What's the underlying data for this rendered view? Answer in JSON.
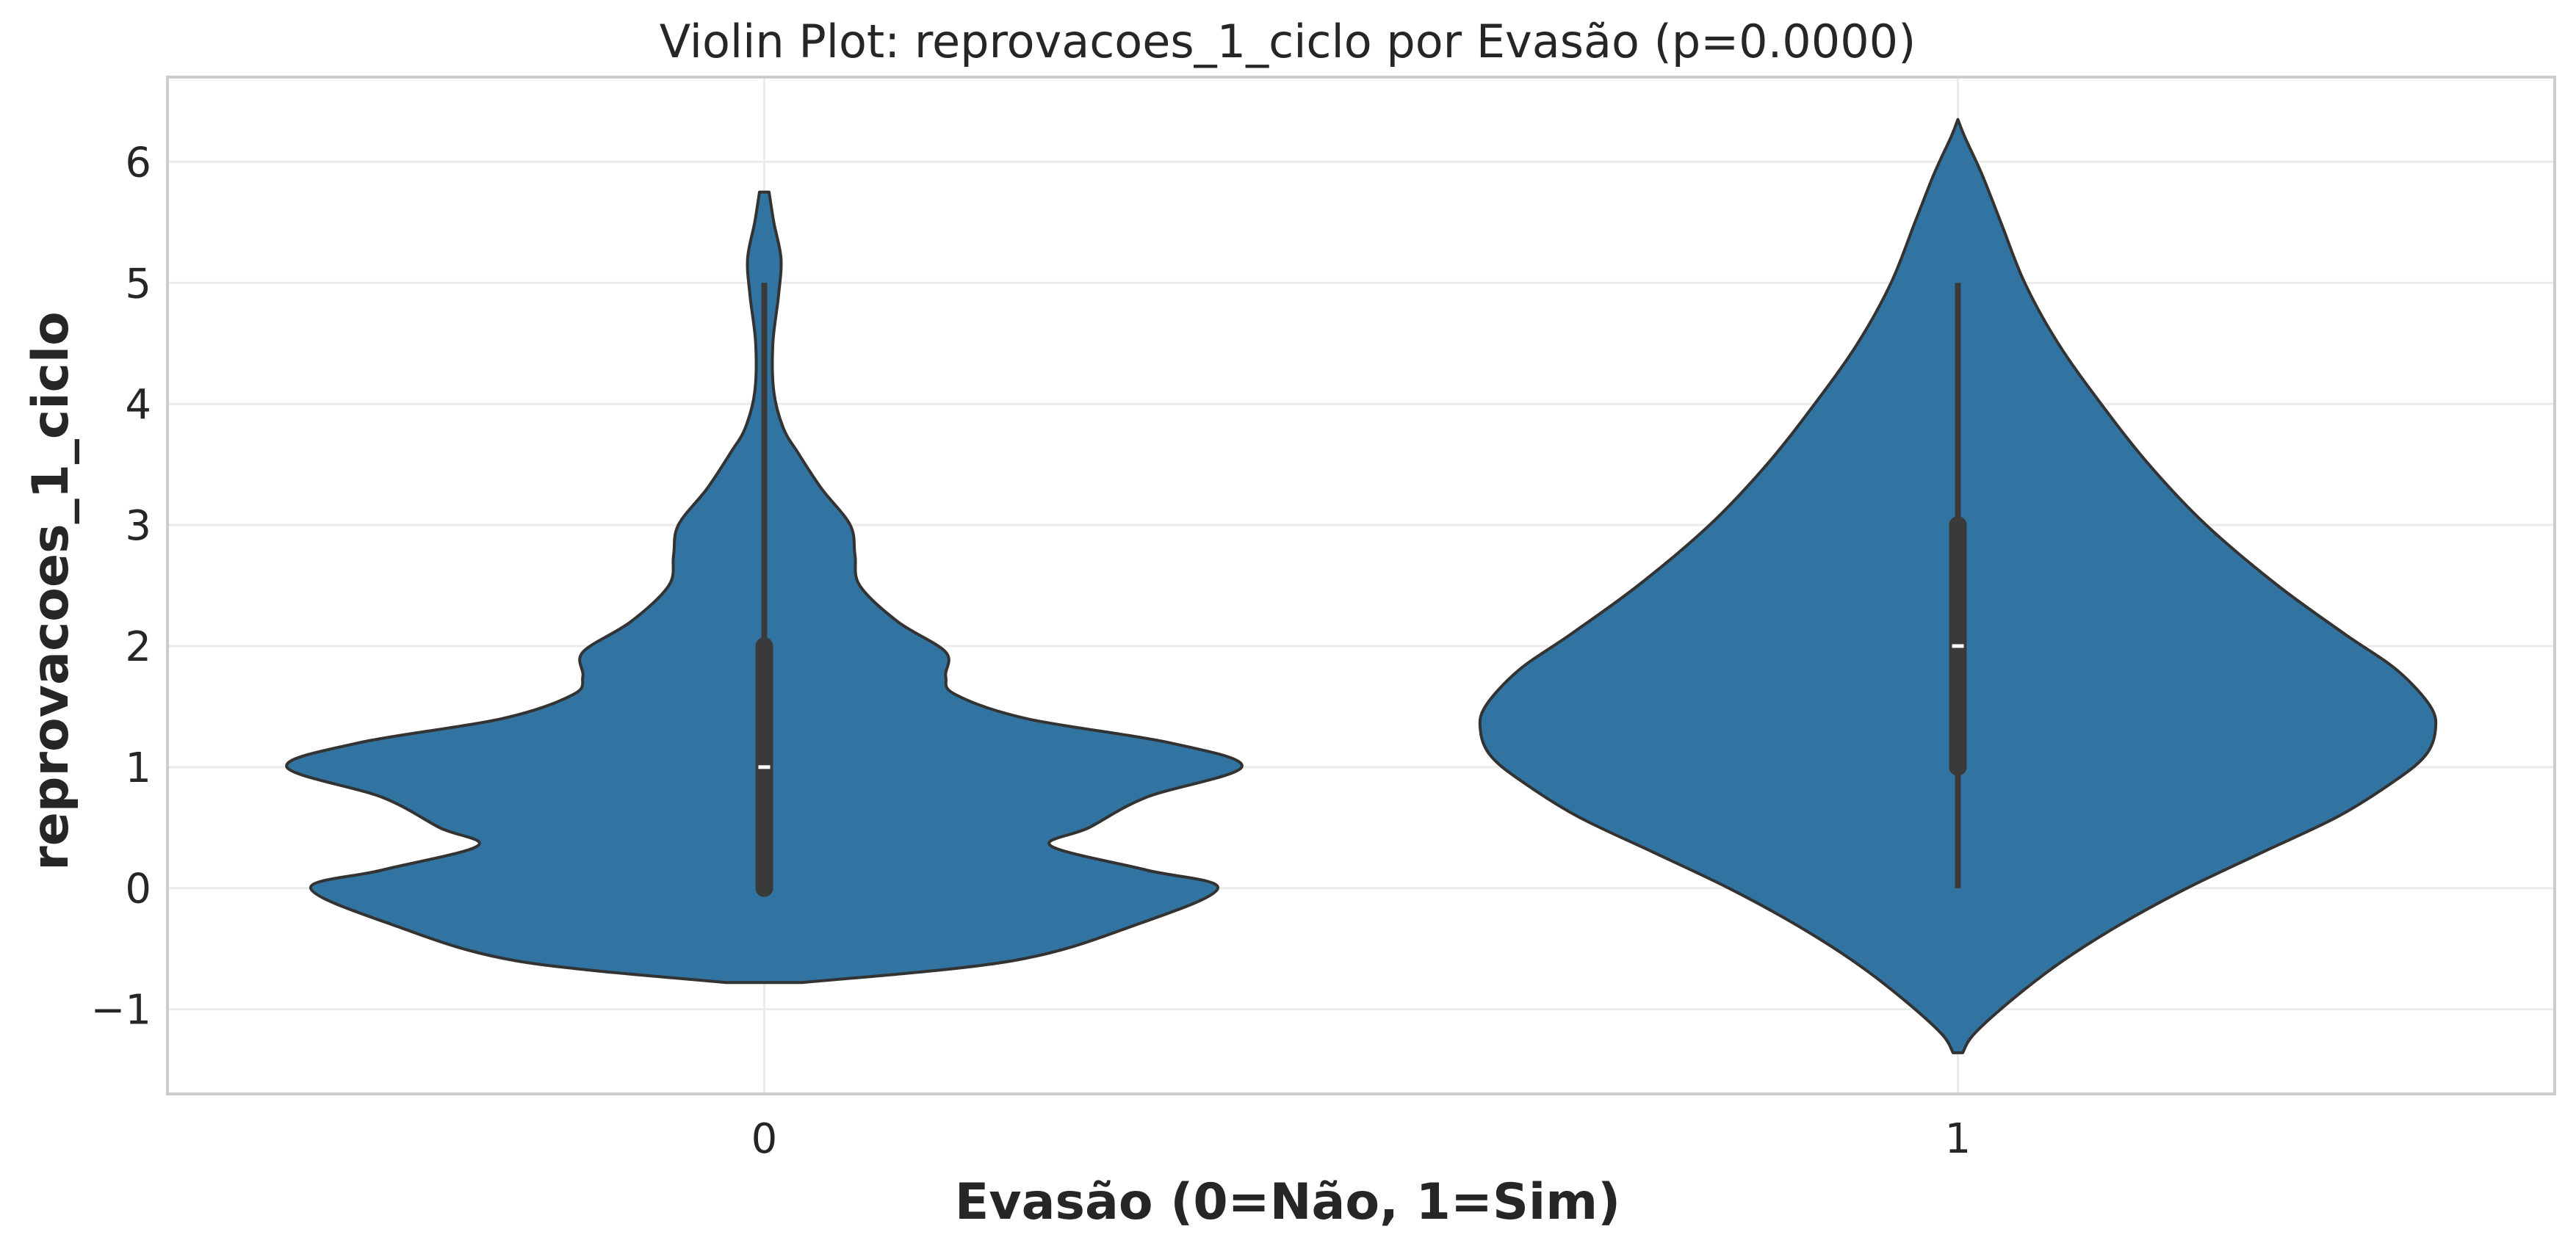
{
  "chart_data": {
    "type": "violin",
    "title": "Violin Plot: reprovacoes_1_ciclo por Evasão (p=0.0000)",
    "xlabel": "Evasão (0=Não, 1=Sim)",
    "ylabel": "reprovacoes_1_ciclo",
    "categories": [
      "0",
      "1"
    ],
    "ylim": [
      -1.7,
      6.7
    ],
    "yticks": [
      -1,
      0,
      1,
      2,
      3,
      4,
      5,
      6
    ],
    "ytick_labels": [
      "−1",
      "0",
      "1",
      "2",
      "3",
      "4",
      "5",
      "6"
    ],
    "grid": true,
    "color": "#3274a1",
    "violins": [
      {
        "category": "0",
        "median": 1,
        "q1": 0,
        "q3": 2,
        "whisker_low": 0,
        "whisker_high": 5,
        "density": [
          [
            -0.78,
            0.08
          ],
          [
            -0.6,
            0.52
          ],
          [
            -0.3,
            0.78
          ],
          [
            0.0,
            0.95
          ],
          [
            0.15,
            0.8
          ],
          [
            0.35,
            0.6
          ],
          [
            0.5,
            0.68
          ],
          [
            0.75,
            0.8
          ],
          [
            1.0,
            1.0
          ],
          [
            1.2,
            0.85
          ],
          [
            1.4,
            0.55
          ],
          [
            1.6,
            0.4
          ],
          [
            1.75,
            0.38
          ],
          [
            1.95,
            0.38
          ],
          [
            2.2,
            0.28
          ],
          [
            2.5,
            0.2
          ],
          [
            2.75,
            0.19
          ],
          [
            3.0,
            0.18
          ],
          [
            3.3,
            0.12
          ],
          [
            3.6,
            0.07
          ],
          [
            3.8,
            0.04
          ],
          [
            4.1,
            0.02
          ],
          [
            4.5,
            0.018
          ],
          [
            4.9,
            0.03
          ],
          [
            5.2,
            0.035
          ],
          [
            5.5,
            0.02
          ],
          [
            5.75,
            0.01
          ]
        ]
      },
      {
        "category": "1",
        "median": 2,
        "q1": 1,
        "q3": 3,
        "whisker_low": 0,
        "whisker_high": 5,
        "density": [
          [
            -1.36,
            0.01
          ],
          [
            -1.2,
            0.035
          ],
          [
            -0.9,
            0.12
          ],
          [
            -0.6,
            0.22
          ],
          [
            -0.3,
            0.34
          ],
          [
            0.0,
            0.48
          ],
          [
            0.3,
            0.64
          ],
          [
            0.6,
            0.8
          ],
          [
            0.9,
            0.92
          ],
          [
            1.1,
            0.98
          ],
          [
            1.3,
            1.0
          ],
          [
            1.5,
            0.99
          ],
          [
            1.8,
            0.92
          ],
          [
            2.1,
            0.81
          ],
          [
            2.5,
            0.67
          ],
          [
            3.0,
            0.52
          ],
          [
            3.5,
            0.4
          ],
          [
            4.0,
            0.3
          ],
          [
            4.5,
            0.21
          ],
          [
            5.0,
            0.14
          ],
          [
            5.5,
            0.09
          ],
          [
            5.9,
            0.05
          ],
          [
            6.2,
            0.015
          ],
          [
            6.35,
            0.0
          ]
        ]
      }
    ]
  }
}
